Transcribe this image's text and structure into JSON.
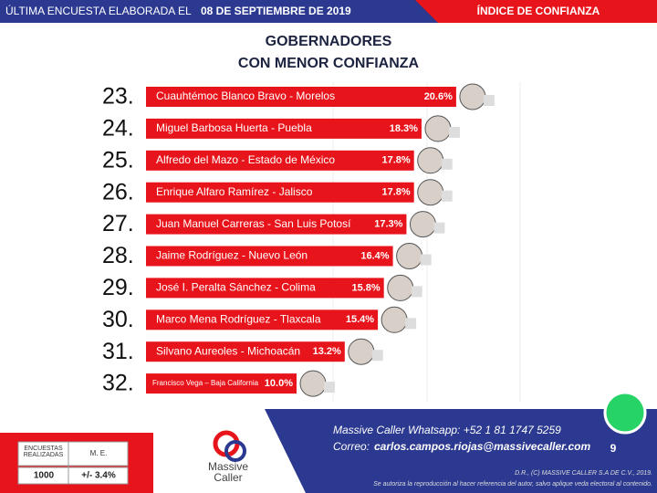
{
  "header": {
    "left_text": "ÚLTIMA ENCUESTA ELABORADA EL",
    "date": "08 DE SEPTIEMBRE DE 2019",
    "right_text": "ÍNDICE DE CONFIANZA"
  },
  "chart_data": {
    "type": "bar",
    "orientation": "horizontal",
    "title": [
      "GOBERNADORES",
      "CON MENOR CONFIANZA"
    ],
    "ranks": [
      "23.",
      "24.",
      "25.",
      "26.",
      "27.",
      "28.",
      "29.",
      "30.",
      "31.",
      "32."
    ],
    "categories": [
      "Cuauhtémoc Blanco Bravo - Morelos",
      "Miguel Barbosa Huerta - Puebla",
      "Alfredo del Mazo - Estado de México",
      "Enrique Alfaro Ramírez - Jalisco",
      "Juan Manuel Carreras - San Luis Potosí",
      "Jaime Rodríguez - Nuevo León",
      "José I. Peralta Sánchez - Colima",
      "Marco Mena Rodríguez - Tlaxcala",
      "Silvano Aureoles - Michoacán",
      "Francisco Vega – Baja California"
    ],
    "values": [
      20.6,
      18.3,
      17.8,
      17.8,
      17.3,
      16.4,
      15.8,
      15.4,
      13.2,
      10.0
    ],
    "value_labels": [
      "20.6%",
      "18.3%",
      "17.8%",
      "17.8%",
      "17.3%",
      "16.4%",
      "15.8%",
      "15.4%",
      "13.2%",
      "10.0%"
    ],
    "color": "#e8141b"
  },
  "footer": {
    "table": {
      "headers": [
        "ENCUESTAS REALIZADAS",
        "M. E."
      ],
      "row": [
        "1000",
        "+/- 3.4%"
      ]
    },
    "logo": [
      "Massive",
      "Caller"
    ],
    "whatsapp": "Massive Caller Whatsapp: +52 1 81 1747 5259",
    "email_label": "Correo:",
    "email": "carlos.campos.riojas@massivecaller.com",
    "page": "9",
    "copyright": "D.R., (C) MASSIVE CALLER S.A DE C.V., 2019.",
    "notice": "Se autoriza la reproducción al hacer referencia del autor, salvo aplique veda electoral al contenido."
  }
}
